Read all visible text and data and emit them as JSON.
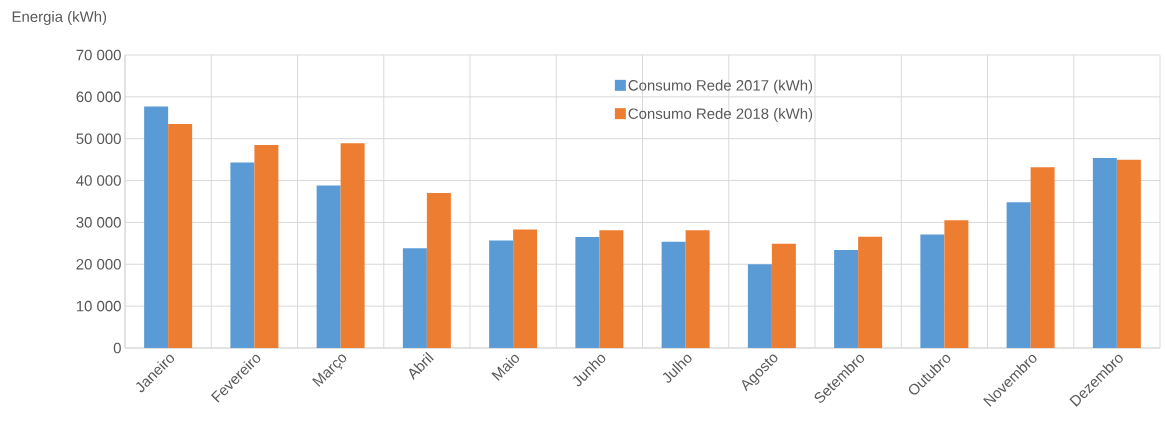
{
  "chart_data": {
    "type": "bar",
    "ylabel": "Energia (kWh)",
    "categories": [
      "Janeiro",
      "Fevereiro",
      "Março",
      "Abril",
      "Maio",
      "Junho",
      "Julho",
      "Agosto",
      "Setembro",
      "Outubro",
      "Novembro",
      "Dezembro"
    ],
    "series": [
      {
        "name": "Consumo Rede 2017 (kWh)",
        "color": "#5b9bd5",
        "values": [
          57700,
          44300,
          38800,
          23800,
          25700,
          26500,
          25400,
          20000,
          23400,
          27100,
          34800,
          45400
        ]
      },
      {
        "name": "Consumo Rede 2018 (kWh)",
        "color": "#ed7d31",
        "values": [
          53500,
          48500,
          48900,
          37000,
          28300,
          28100,
          28100,
          24900,
          26600,
          30500,
          43200,
          45000
        ]
      }
    ],
    "ylim": [
      0,
      70000
    ],
    "yticks": [
      0,
      {
        "value": 10000,
        "label": "10 000"
      },
      {
        "value": 20000,
        "label": "20 000"
      },
      {
        "value": 30000,
        "label": "30 000"
      },
      {
        "value": 40000,
        "label": "40 000"
      },
      {
        "value": 50000,
        "label": "50 000"
      },
      {
        "value": 60000,
        "label": "60 000"
      },
      {
        "value": 70000,
        "label": "70 000"
      }
    ],
    "grid": true,
    "legend": "top"
  }
}
